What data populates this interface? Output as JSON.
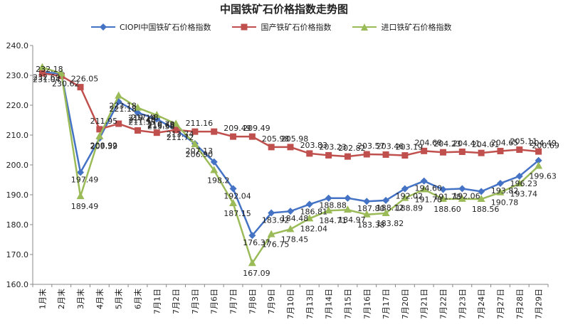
{
  "chart_data": {
    "type": "line",
    "title": "中国铁矿石价格指数走势图",
    "xlabel": "",
    "ylabel": "",
    "ylim": [
      160,
      240
    ],
    "ytick_step": 10,
    "yticks": [
      "160.0",
      "170.0",
      "180.0",
      "190.0",
      "200.0",
      "210.0",
      "220.0",
      "230.0",
      "240.0"
    ],
    "grid": false,
    "legend_position": "top",
    "categories": [
      "1月末",
      "2月末",
      "3月末",
      "4月末",
      "5月末",
      "6月末",
      "7月1日",
      "7月2日",
      "7月3日",
      "7月6日",
      "7月7日",
      "7月8日",
      "7月9日",
      "7月10日",
      "7月13日",
      "7月14日",
      "7月15日",
      "7月16日",
      "7月17日",
      "7月20日",
      "7月21日",
      "7月22日",
      "7月23日",
      "7月24日",
      "7月27日",
      "7月28日",
      "7月29日"
    ],
    "series": [
      {
        "name": "CIOPI中国铁矿石价格指数",
        "color": "#4472C4",
        "marker": "diamond",
        "values": [
          231.04,
          230.62,
          197.49,
          208.92,
          221.18,
          217.48,
          215.38,
          211.72,
          207.13,
          201.0,
          192.04,
          176.37,
          183.92,
          184.48,
          186.81,
          188.88,
          188.88,
          187.8,
          188.12,
          192.02,
          194.6,
          191.78,
          192.06,
          191.1,
          193.82,
          196.23,
          201.5
        ],
        "labels": [
          "231.04",
          "",
          "197.49",
          "208.92",
          "221.18",
          "217.48",
          "215.38",
          "211.72",
          "207.13",
          "",
          "192.04",
          "176.37",
          "183.92",
          "184.48",
          "186.81",
          "188.88",
          "",
          "187.80",
          "188.12",
          "192.02",
          "194.60",
          "191.78",
          "192.06",
          "",
          "193.82",
          "196.23",
          ""
        ]
      },
      {
        "name": "国产铁矿石价格指数",
        "color": "#C0504D",
        "marker": "square",
        "values": [
          230.7,
          229.8,
          226.05,
          211.95,
          213.8,
          211.55,
          210.79,
          211.72,
          211.16,
          211.16,
          209.49,
          209.49,
          205.98,
          205.98,
          203.83,
          203.23,
          202.82,
          203.57,
          203.46,
          203.19,
          204.68,
          204.23,
          204.41,
          204.01,
          204.65,
          205.11,
          204.49
        ],
        "labels": [
          "",
          "",
          "226.05",
          "211.95",
          "",
          "211.55",
          "210.79",
          "",
          "211.16",
          "",
          "209.49",
          "209.49",
          "205.98",
          "205.98",
          "203.83",
          "203.23",
          "202.82",
          "203.57",
          "203.46",
          "203.19",
          "204.68",
          "204.23",
          "204.41",
          "204.01",
          "204.65",
          "205.11",
          "204.49"
        ]
      },
      {
        "name": "进口铁矿石价格指数",
        "color": "#9BBB59",
        "marker": "triangle",
        "values": [
          232.69,
          230.62,
          189.49,
          209.59,
          223.18,
          219.14,
          216.66,
          213.74,
          206.9,
          198.2,
          187.15,
          167.09,
          176.75,
          178.45,
          182.04,
          184.71,
          184.97,
          183.38,
          183.82,
          188.89,
          191.78,
          188.6,
          188.6,
          188.56,
          190.78,
          193.74,
          199.63
        ],
        "labels": [
          "232.69",
          "230.62",
          "189.49",
          "209.59",
          "223.18",
          "219.14",
          "216.66",
          "213.74",
          "206.90",
          "198.2",
          "187.15",
          "167.09",
          "176.75",
          "178.45",
          "182.04",
          "184.71",
          "184.97",
          "183.38",
          "183.82",
          "188.89",
          "191.78",
          "188.60",
          "",
          "188.56",
          "190.78",
          "193.74",
          "199.63"
        ]
      }
    ],
    "extra_labels": [
      "232.18",
      "217.48",
      "200.69"
    ]
  }
}
